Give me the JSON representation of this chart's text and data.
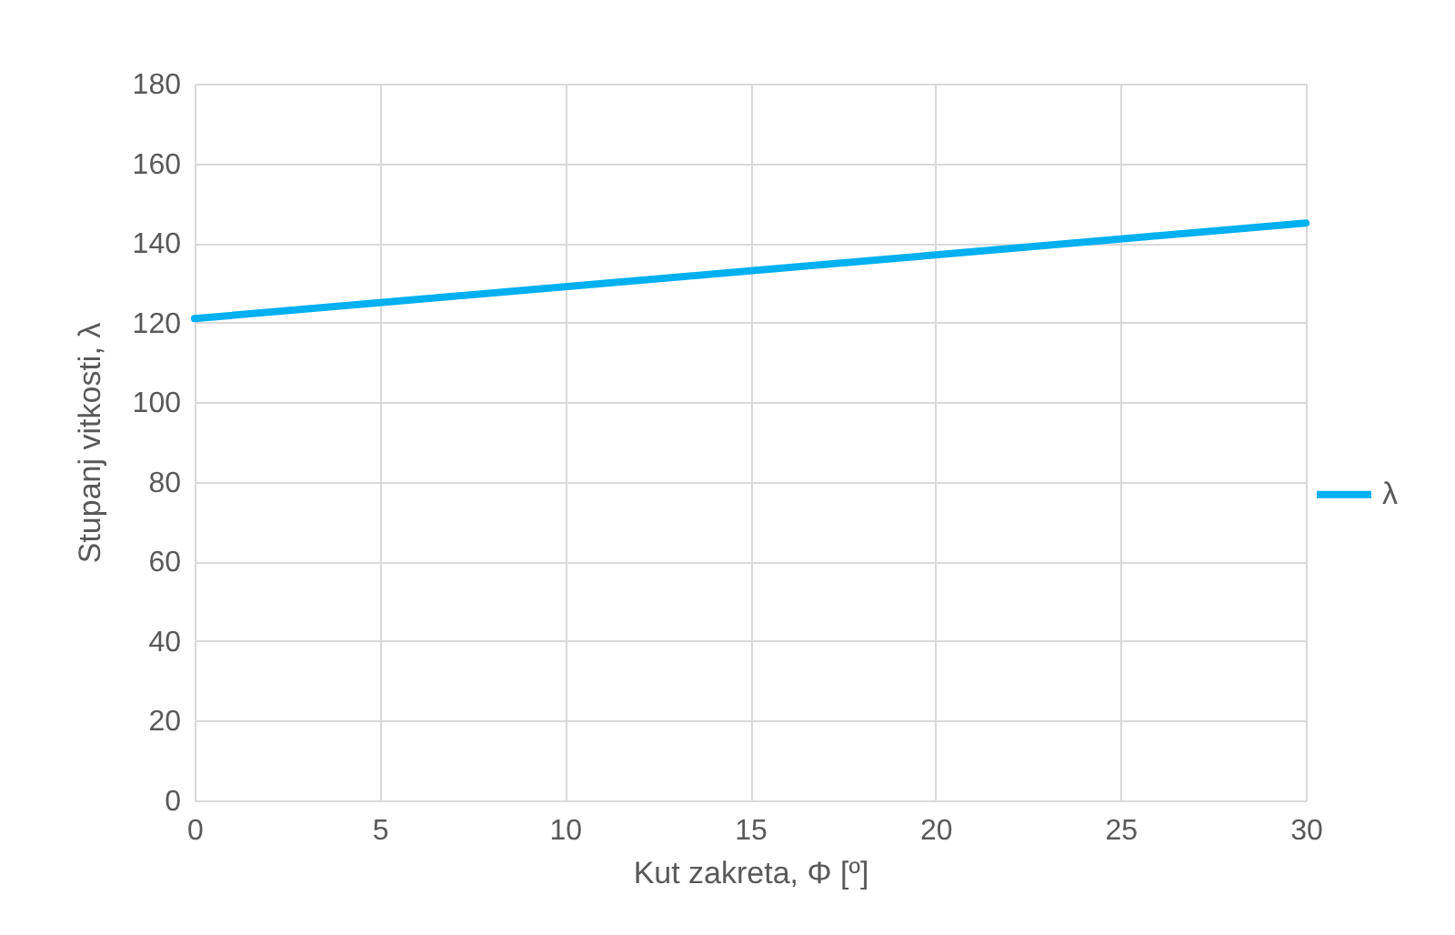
{
  "chart_data": {
    "type": "line",
    "xlabel": "Kut zakreta, Φ [º]",
    "ylabel": "Stupanj vitkosti, λ",
    "x": [
      0,
      5,
      10,
      15,
      20,
      25,
      30
    ],
    "series": [
      {
        "name": "λ",
        "color": "#00b0f0",
        "values": [
          121,
          125,
          129,
          133,
          137,
          141,
          145
        ]
      }
    ],
    "xlim": [
      0,
      30
    ],
    "xticks": [
      0,
      5,
      10,
      15,
      20,
      25,
      30
    ],
    "ylim": [
      0,
      180
    ],
    "yticks": [
      0,
      20,
      40,
      60,
      80,
      100,
      120,
      140,
      160,
      180
    ],
    "grid": true,
    "legend": "right",
    "marker": "none",
    "line_style": "solid"
  }
}
